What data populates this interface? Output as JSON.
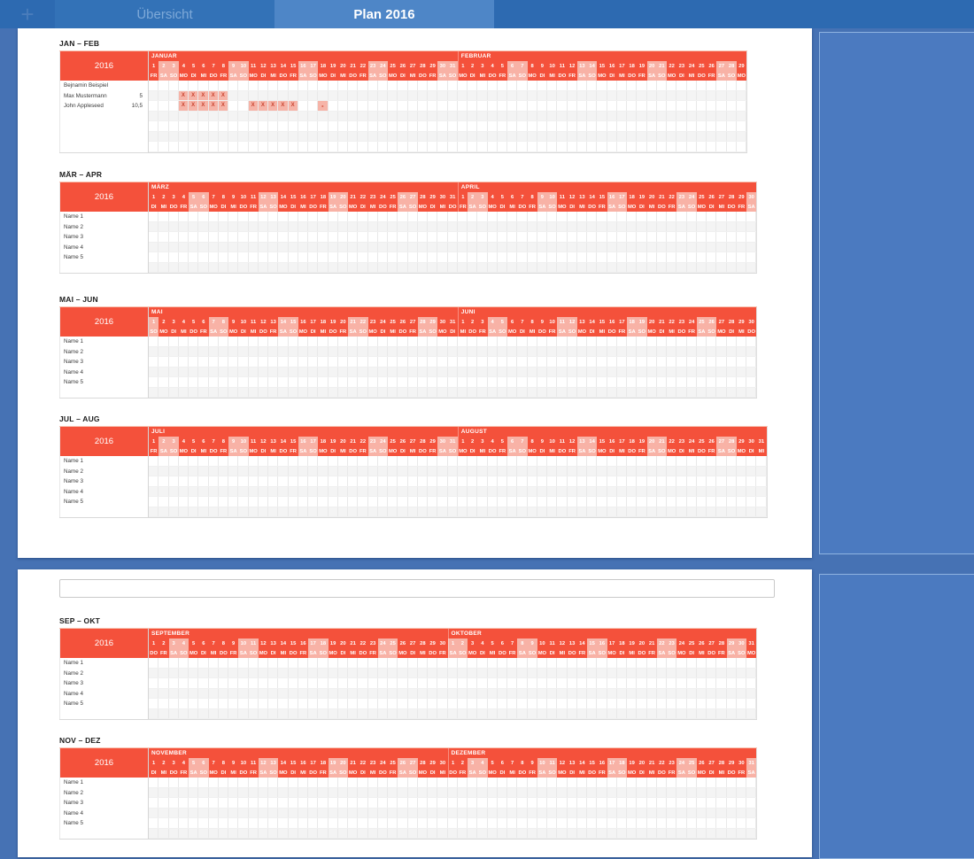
{
  "window": {
    "add_tab_label": "+",
    "tabs": [
      {
        "label": "Übersicht",
        "active": false
      },
      {
        "label": "Plan 2016",
        "active": true
      }
    ]
  },
  "colors": {
    "topbar": "#2d6ab1",
    "tab_active_bg": "#4e86c7",
    "tab_inactive_bg": "#3372b7",
    "tab_inactive_text": "#7ea9d8",
    "workspace": "#4672b4",
    "header_red": "#f4513b",
    "weekend_pink": "#f8b2a6",
    "mark_cell_pink": "#f6b4a8",
    "mark_text_red": "#c9432e",
    "row_stripe": "#f4f4f4",
    "adjacent_page_blue": "#4b7ac0"
  },
  "year_label": "2016",
  "weekday_cycle": [
    "MO",
    "DI",
    "MI",
    "DO",
    "FR",
    "SA",
    "SO"
  ],
  "weekend_days": [
    "SA",
    "SO"
  ],
  "textbox": {
    "value": ""
  },
  "tables": [
    {
      "title": "JAN – FEB",
      "months": [
        {
          "name": "JANUAR",
          "days": 31,
          "start_weekday": "FR"
        },
        {
          "name": "FEBRUAR",
          "days": 29,
          "start_weekday": "MO"
        }
      ],
      "body_rows": 7,
      "rows": [
        {
          "name": "Bejnamin Beispiel",
          "total": ""
        },
        {
          "name": "Max Mustermann",
          "total": "5",
          "marks": [
            {
              "month": 0,
              "days": [
                4,
                5,
                6,
                7,
                8
              ],
              "symbol": "X"
            }
          ]
        },
        {
          "name": "John Appleseed",
          "total": "10,5",
          "marks": [
            {
              "month": 0,
              "days": [
                4,
                5,
                6,
                7,
                8,
                11,
                12,
                13,
                14,
                15
              ],
              "symbol": "X"
            },
            {
              "month": 0,
              "days": [
                18
              ],
              "symbol": "x",
              "small": true
            }
          ]
        }
      ]
    },
    {
      "title": "MÄR – APR",
      "months": [
        {
          "name": "MÄRZ",
          "days": 31,
          "start_weekday": "DI"
        },
        {
          "name": "APRIL",
          "days": 30,
          "start_weekday": "FR"
        }
      ],
      "body_rows": 6,
      "rows": [
        {
          "name": "Name 1",
          "total": ""
        },
        {
          "name": "Name 2",
          "total": ""
        },
        {
          "name": "Name 3",
          "total": ""
        },
        {
          "name": "Name 4",
          "total": ""
        },
        {
          "name": "Name 5",
          "total": ""
        }
      ]
    },
    {
      "title": "MAI – JUN",
      "months": [
        {
          "name": "MAI",
          "days": 31,
          "start_weekday": "SO"
        },
        {
          "name": "JUNI",
          "days": 30,
          "start_weekday": "MI"
        }
      ],
      "body_rows": 6,
      "rows": [
        {
          "name": "Name 1",
          "total": ""
        },
        {
          "name": "Name 2",
          "total": ""
        },
        {
          "name": "Name 3",
          "total": ""
        },
        {
          "name": "Name 4",
          "total": ""
        },
        {
          "name": "Name 5",
          "total": ""
        }
      ]
    },
    {
      "title": "JUL – AUG",
      "months": [
        {
          "name": "JULI",
          "days": 31,
          "start_weekday": "FR"
        },
        {
          "name": "AUGUST",
          "days": 31,
          "start_weekday": "MO"
        }
      ],
      "body_rows": 6,
      "rows": [
        {
          "name": "Name 1",
          "total": ""
        },
        {
          "name": "Name 2",
          "total": ""
        },
        {
          "name": "Name 3",
          "total": ""
        },
        {
          "name": "Name 4",
          "total": ""
        },
        {
          "name": "Name 5",
          "total": ""
        }
      ]
    },
    {
      "title": "SEP – OKT",
      "months": [
        {
          "name": "SEPTEMBER",
          "days": 30,
          "start_weekday": "DO"
        },
        {
          "name": "OKTOBER",
          "days": 31,
          "start_weekday": "SA"
        }
      ],
      "body_rows": 6,
      "rows": [
        {
          "name": "Name 1",
          "total": ""
        },
        {
          "name": "Name 2",
          "total": ""
        },
        {
          "name": "Name 3",
          "total": ""
        },
        {
          "name": "Name 4",
          "total": ""
        },
        {
          "name": "Name 5",
          "total": ""
        }
      ]
    },
    {
      "title": "NOV – DEZ",
      "months": [
        {
          "name": "NOVEMBER",
          "days": 30,
          "start_weekday": "DI"
        },
        {
          "name": "DEZEMBER",
          "days": 31,
          "start_weekday": "DO"
        }
      ],
      "body_rows": 6,
      "rows": [
        {
          "name": "Name 1",
          "total": ""
        },
        {
          "name": "Name 2",
          "total": ""
        },
        {
          "name": "Name 3",
          "total": ""
        },
        {
          "name": "Name 4",
          "total": ""
        },
        {
          "name": "Name 5",
          "total": ""
        }
      ]
    }
  ]
}
